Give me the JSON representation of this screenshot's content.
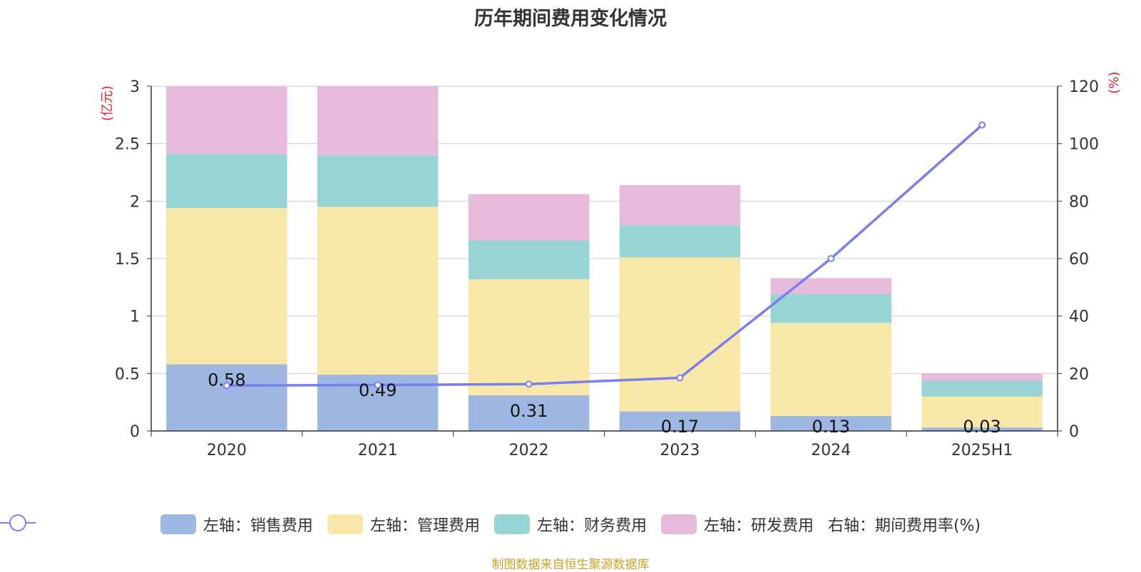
{
  "title": "历年期间费用变化情况",
  "source": "制图数据来自恒生聚源数据库",
  "chart_data": {
    "type": "bar",
    "stacked": true,
    "categories": [
      "2020",
      "2021",
      "2022",
      "2023",
      "2024",
      "2025H1"
    ],
    "y_left": {
      "unit": "(亿元)",
      "ylim": [
        0,
        3
      ],
      "ticks": [
        "0",
        "0.5",
        "1",
        "1.5",
        "2",
        "2.5",
        "3"
      ]
    },
    "y_right": {
      "unit": "(%)",
      "ylim": [
        0,
        120
      ],
      "ticks": [
        "0",
        "20",
        "40",
        "60",
        "80",
        "100",
        "120"
      ]
    },
    "series": [
      {
        "name": "左轴：销售费用",
        "color": "#9db7e2",
        "values": [
          0.58,
          0.49,
          0.31,
          0.17,
          0.13,
          0.03
        ],
        "labels": [
          "0.58",
          "0.49",
          "0.31",
          "0.17",
          "0.13",
          "0.03"
        ]
      },
      {
        "name": "左轴：管理费用",
        "color": "#f7e7a9",
        "values": [
          1.36,
          1.46,
          1.01,
          1.34,
          0.81,
          0.27
        ]
      },
      {
        "name": "左轴：财务费用",
        "color": "#98d4d4",
        "values": [
          0.47,
          0.45,
          0.34,
          0.28,
          0.25,
          0.14
        ]
      },
      {
        "name": "左轴：研发费用",
        "color": "#e7b9da",
        "values": [
          0.59,
          0.6,
          0.4,
          0.35,
          0.14,
          0.06
        ]
      }
    ],
    "line_series": {
      "name": "右轴：期间费用率(%)",
      "color": "#7b7eee",
      "values": [
        15.8,
        16.0,
        16.3,
        18.5,
        60.0,
        106.5
      ]
    },
    "grid": true,
    "legend": "bottom"
  }
}
